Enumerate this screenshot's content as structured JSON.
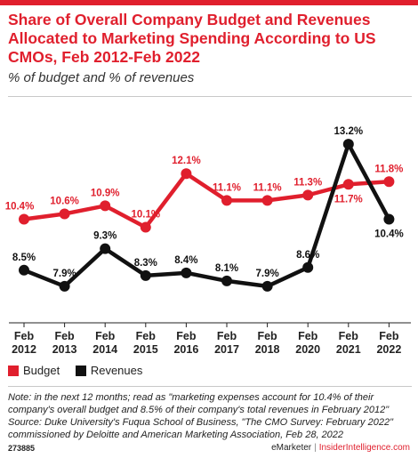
{
  "header": {
    "title": "Share of Overall Company Budget and Revenues Allocated to Marketing Spending According to US CMOs, Feb 2012-Feb 2022",
    "subtitle": "% of budget and % of revenues"
  },
  "colors": {
    "accent": "#e01f2d",
    "budget": "#e01f2d",
    "revenues": "#111111"
  },
  "chart_data": {
    "type": "line",
    "categories": [
      [
        "Feb",
        "2012"
      ],
      [
        "Feb",
        "2013"
      ],
      [
        "Feb",
        "2014"
      ],
      [
        "Feb",
        "2015"
      ],
      [
        "Feb",
        "2016"
      ],
      [
        "Feb",
        "2017"
      ],
      [
        "Feb",
        "2018"
      ],
      [
        "Feb",
        "2020"
      ],
      [
        "Feb",
        "2021"
      ],
      [
        "Feb",
        "2022"
      ]
    ],
    "series": [
      {
        "name": "Budget",
        "values": [
          10.4,
          10.6,
          10.9,
          10.1,
          12.1,
          11.1,
          11.1,
          11.3,
          11.7,
          11.8
        ],
        "labels": [
          "10.4%",
          "10.6%",
          "10.9%",
          "10.1%",
          "12.1%",
          "11.1%",
          "11.1%",
          "11.3%",
          "11.7%",
          "11.8%"
        ]
      },
      {
        "name": "Revenues",
        "values": [
          8.5,
          7.9,
          9.3,
          8.3,
          8.4,
          8.1,
          7.9,
          8.6,
          13.2,
          10.4
        ],
        "labels": [
          "8.5%",
          "7.9%",
          "9.3%",
          "8.3%",
          "8.4%",
          "8.1%",
          "7.9%",
          "8.6%",
          "13.2%",
          "10.4%"
        ]
      }
    ],
    "ylim": [
      7.3,
      13.6
    ],
    "grid": false,
    "legend_placement": "bottom-left"
  },
  "legend": {
    "budget_label": "Budget",
    "revenues_label": "Revenues"
  },
  "footer": {
    "note": "Note: in the next 12 months; read as \"marketing expenses account for 10.4% of their company's overall budget and 8.5% of their company's total revenues in February 2012\" Source: Duke University's Fuqua School of Business, \"The CMO Survey: February 2022\" commissioned by Deloitte and American Marketing Association, Feb 28, 2022",
    "chart_id": "273885",
    "brand": "eMarketer",
    "separator": "|",
    "site": "InsiderIntelligence.com"
  }
}
